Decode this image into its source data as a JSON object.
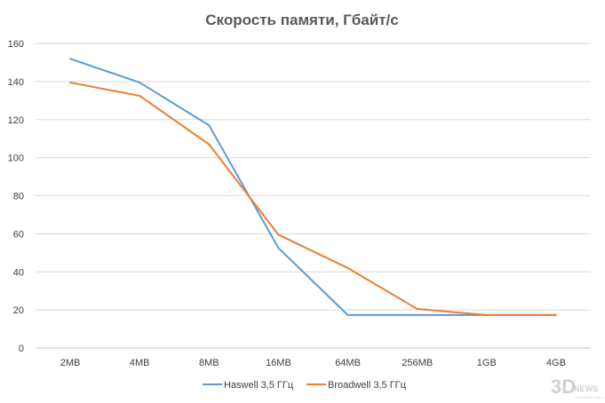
{
  "chart_data": {
    "type": "line",
    "title": "Скорость памяти, Гбайт/с",
    "xlabel": "",
    "ylabel": "",
    "categories": [
      "2MB",
      "4MB",
      "8MB",
      "16MB",
      "64MB",
      "256MB",
      "1GB",
      "4GB"
    ],
    "ylim": [
      0,
      160
    ],
    "yticks": [
      0,
      20,
      40,
      60,
      80,
      100,
      120,
      140,
      160
    ],
    "grid": "horizontal",
    "legend_position": "bottom",
    "series": [
      {
        "name": "Haswell 3,5 ГГц",
        "color": "#5b9bd5",
        "values": [
          152,
          139.5,
          117,
          52.5,
          17.3,
          17.3,
          17.3,
          17.3
        ]
      },
      {
        "name": "Broadwell 3,5 ГГц",
        "color": "#ed7d31",
        "values": [
          139.5,
          132.5,
          107,
          59.5,
          42,
          20.5,
          17.3,
          17.3
        ]
      }
    ]
  },
  "watermark": {
    "logo": "3D",
    "sub": "NEWS",
    "tagline": "Daily Digital Digest"
  }
}
